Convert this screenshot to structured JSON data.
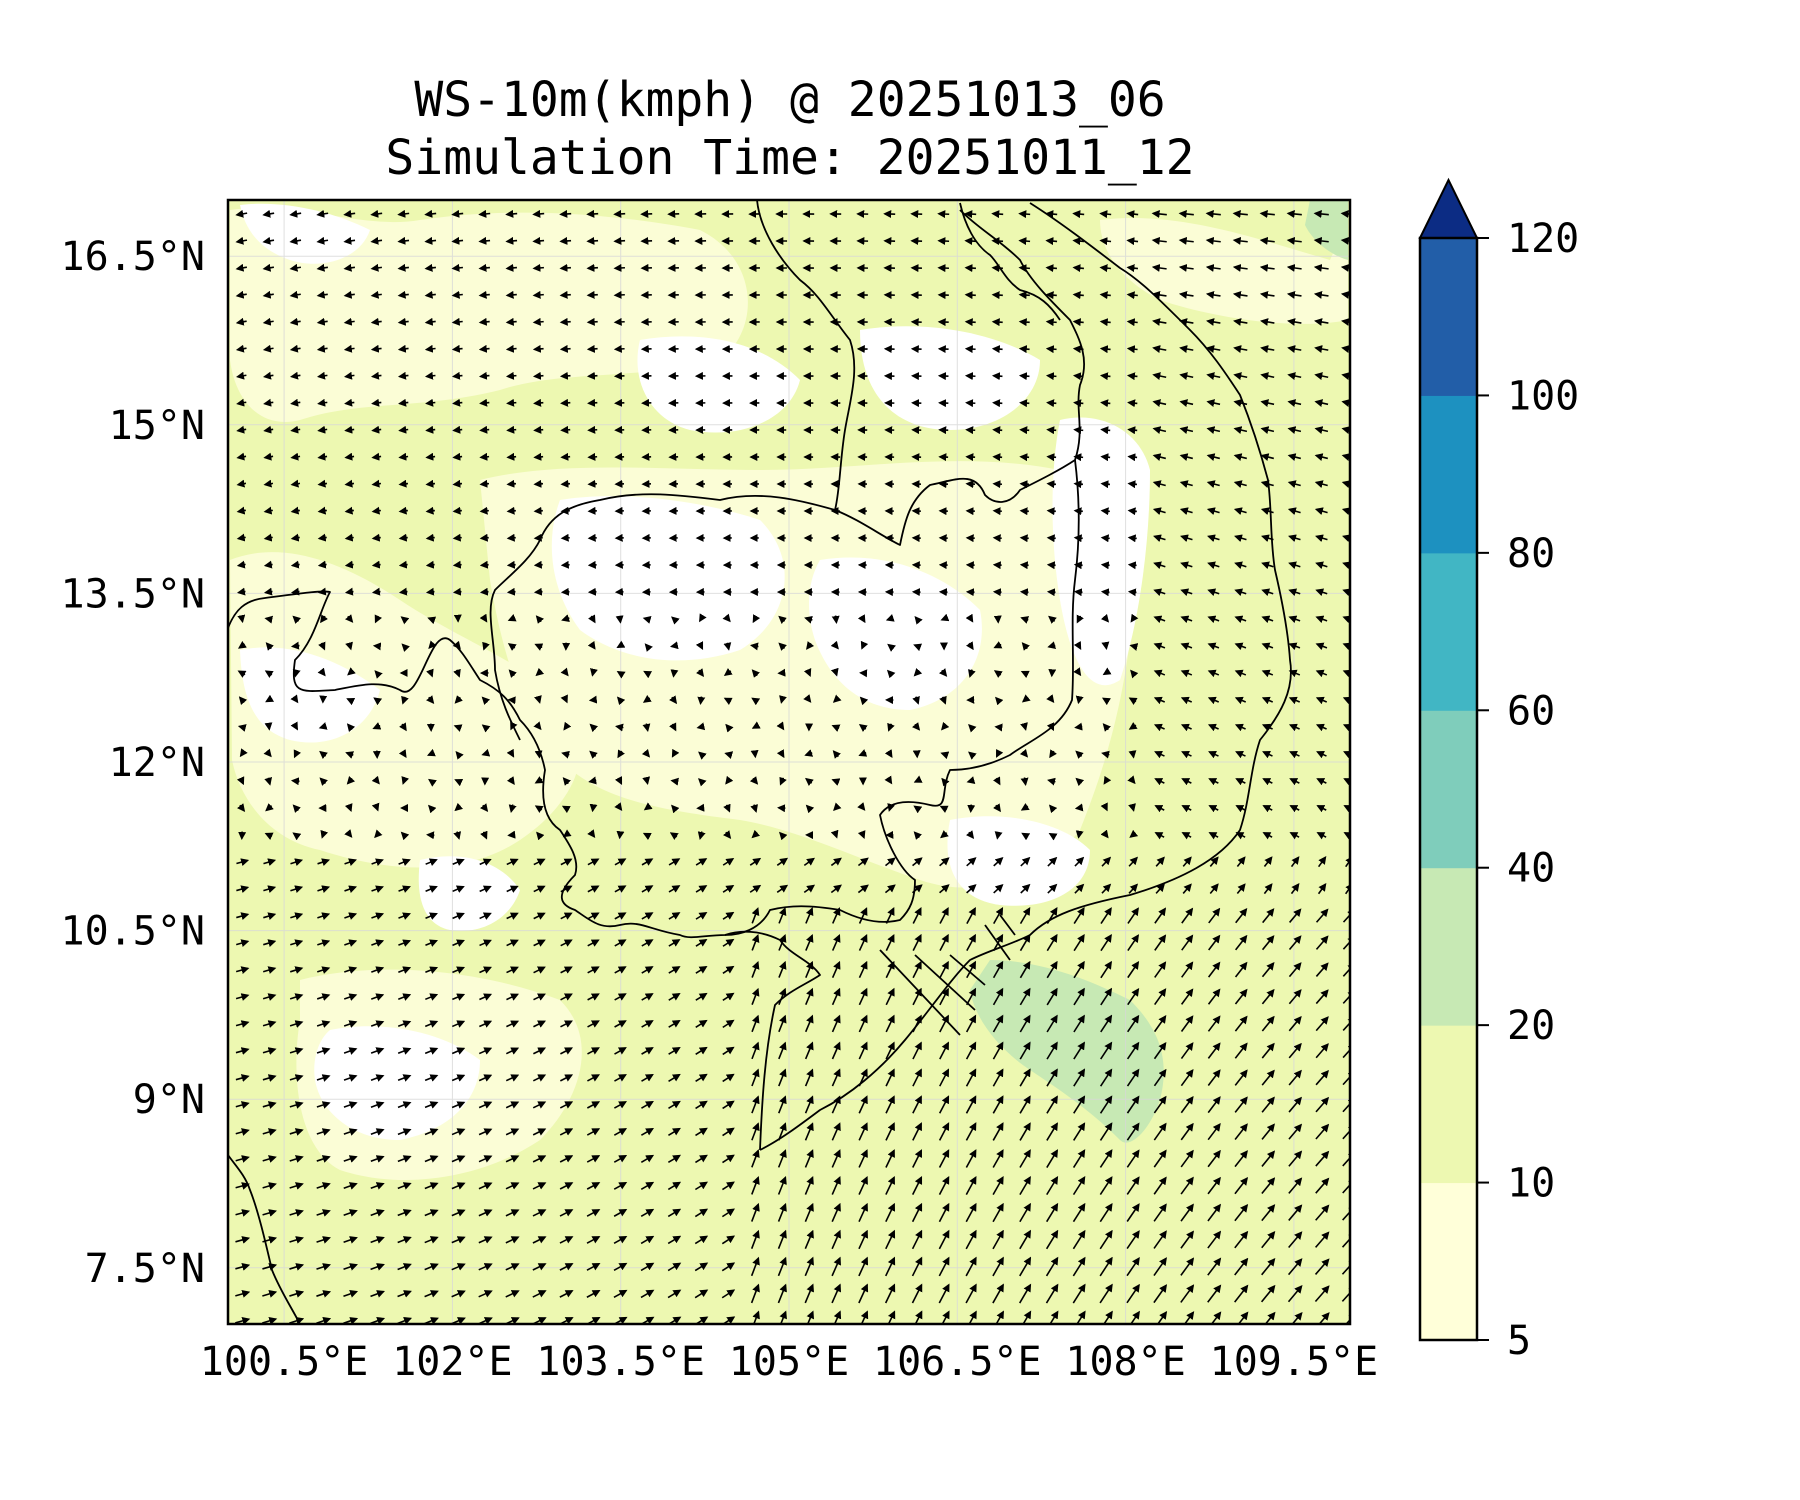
{
  "title_line1": "WS-10m(kmph) @ 20251013_06",
  "title_line2": "Simulation Time: 20251011_12",
  "map": {
    "lon_range": [
      100.0,
      110.0
    ],
    "lat_range": [
      7.0,
      17.0
    ],
    "lon_ticks": [
      100.5,
      102,
      103.5,
      105,
      106.5,
      108,
      109.5
    ],
    "lat_ticks": [
      16.5,
      15,
      13.5,
      12,
      10.5,
      9,
      7.5
    ],
    "lon_tick_labels": [
      "100.5°E",
      "102°E",
      "103.5°E",
      "105°E",
      "106.5°E",
      "108°E",
      "109.5°E"
    ],
    "lat_tick_labels": [
      "16.5°N",
      "15°N",
      "13.5°N",
      "12°N",
      "10.5°N",
      "9°N",
      "7.5°N"
    ],
    "gridlines": true,
    "coastline_color": "#000000",
    "field": "wind speed at 10 m (kmph) with wind direction vectors"
  },
  "colorbar": {
    "levels": [
      5,
      10,
      20,
      40,
      60,
      80,
      100,
      120
    ],
    "tick_labels": [
      "5",
      "10",
      "20",
      "40",
      "60",
      "80",
      "100",
      "120"
    ],
    "colors": [
      "#ffffd9",
      "#edf8b1",
      "#c7e9b4",
      "#7fcdbb",
      "#41b6c4",
      "#1d91c0",
      "#225ea8"
    ],
    "extend_color": "#0c2c84",
    "extend": "max"
  }
}
